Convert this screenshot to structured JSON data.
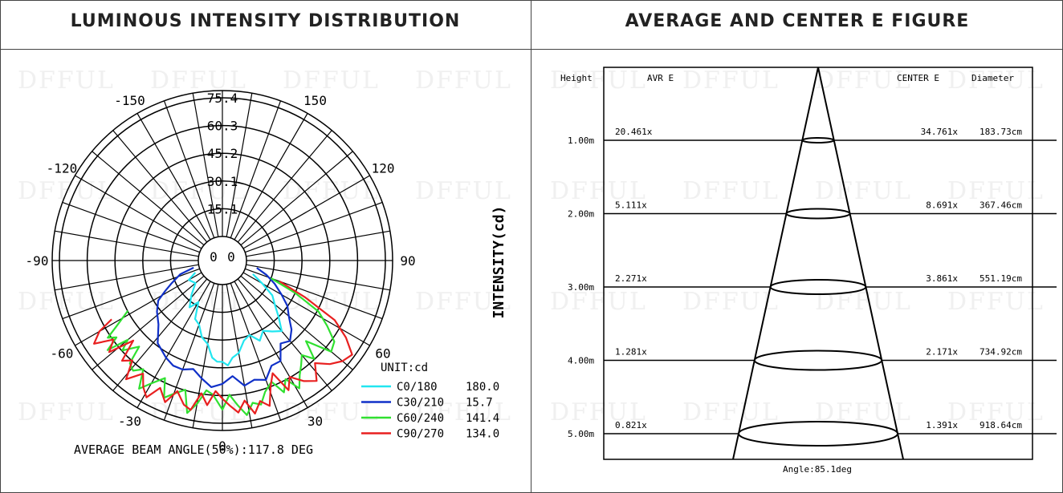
{
  "left_title": "LUMINOUS INTENSITY DISTRIBUTION",
  "right_title": "AVERAGE AND CENTER E FIGURE",
  "watermark": "DFFUL",
  "chart_data": [
    {
      "type": "polar",
      "title": "LUMINOUS INTENSITY DISTRIBUTION",
      "radial_axis_label": "INTENSITY(cd)",
      "radial_ticks": [
        "75.4",
        "60.3",
        "45.2",
        "30.1",
        "15.1"
      ],
      "radial_max": 75.4,
      "radial_step": 15.08,
      "angle_labels": [
        "0",
        "30",
        "60",
        "90",
        "120",
        "150",
        "-150",
        "-120",
        "-90",
        "-60",
        "-30"
      ],
      "center_labels": [
        "0",
        "0"
      ],
      "unit_label": "UNIT:cd",
      "beam_angle_text": "AVERAGE BEAM ANGLE(50%):117.8 DEG",
      "grid": true,
      "legend_position": "bottom-right",
      "series": [
        {
          "name": "C0/180",
          "value": "180.0",
          "color": "#22e6f0",
          "points": [
            [
              -66,
              3
            ],
            [
              -60,
              8
            ],
            [
              -50,
              6
            ],
            [
              -42,
              12
            ],
            [
              -35,
              18
            ],
            [
              -30,
              13
            ],
            [
              -25,
              22
            ],
            [
              -20,
              24
            ],
            [
              -15,
              30
            ],
            [
              -10,
              33
            ],
            [
              -6,
              40
            ],
            [
              -3,
              42
            ],
            [
              0,
              42
            ],
            [
              3,
              44
            ],
            [
              6,
              40
            ],
            [
              10,
              38
            ],
            [
              15,
              32
            ],
            [
              20,
              30
            ],
            [
              25,
              35
            ],
            [
              30,
              31
            ],
            [
              35,
              34
            ],
            [
              40,
              37
            ],
            [
              45,
              30
            ],
            [
              50,
              24
            ],
            [
              55,
              20
            ],
            [
              60,
              12
            ],
            [
              66,
              5
            ]
          ]
        },
        {
          "name": "C30/210",
          "value": "15.7",
          "color": "#1030c8",
          "points": [
            [
              -76,
              3
            ],
            [
              -72,
              11
            ],
            [
              -66,
              17
            ],
            [
              -62,
              22
            ],
            [
              -58,
              28
            ],
            [
              -52,
              32
            ],
            [
              -45,
              36
            ],
            [
              -38,
              44
            ],
            [
              -30,
              48
            ],
            [
              -25,
              50
            ],
            [
              -20,
              50
            ],
            [
              -15,
              48
            ],
            [
              -10,
              52
            ],
            [
              -5,
              56
            ],
            [
              0,
              54
            ],
            [
              5,
              50
            ],
            [
              10,
              56
            ],
            [
              15,
              54
            ],
            [
              20,
              56
            ],
            [
              25,
              50
            ],
            [
              30,
              50
            ],
            [
              35,
              42
            ],
            [
              40,
              44
            ],
            [
              45,
              40
            ],
            [
              50,
              34
            ],
            [
              55,
              30
            ],
            [
              60,
              24
            ],
            [
              66,
              18
            ],
            [
              72,
              12
            ],
            [
              78,
              6
            ]
          ]
        },
        {
          "name": "C60/240",
          "value": "141.4",
          "color": "#30e030",
          "points": [
            [
              -62,
              45
            ],
            [
              -58,
              55
            ],
            [
              -56,
              62
            ],
            [
              -54,
              58
            ],
            [
              -52,
              66
            ],
            [
              -50,
              54
            ],
            [
              -48,
              60
            ],
            [
              -44,
              52
            ],
            [
              -42,
              62
            ],
            [
              -39,
              64
            ],
            [
              -36,
              60
            ],
            [
              -33,
              70
            ],
            [
              -30,
              64
            ],
            [
              -26,
              58
            ],
            [
              -23,
              68
            ],
            [
              -20,
              64
            ],
            [
              -16,
              60
            ],
            [
              -13,
              72
            ],
            [
              -10,
              66
            ],
            [
              -7,
              58
            ],
            [
              -4,
              60
            ],
            [
              0,
              68
            ],
            [
              3,
              60
            ],
            [
              6,
              66
            ],
            [
              9,
              72
            ],
            [
              12,
              66
            ],
            [
              15,
              68
            ],
            [
              18,
              62
            ],
            [
              22,
              58
            ],
            [
              25,
              66
            ],
            [
              28,
              60
            ],
            [
              31,
              68
            ],
            [
              34,
              62
            ],
            [
              37,
              58
            ],
            [
              40,
              54
            ],
            [
              43,
              60
            ],
            [
              46,
              50
            ],
            [
              50,
              64
            ],
            [
              54,
              62
            ],
            [
              58,
              54
            ],
            [
              62,
              46
            ],
            [
              66,
              30
            ],
            [
              70,
              15
            ]
          ]
        },
        {
          "name": "C90/270",
          "value": "134.0",
          "color": "#e82020",
          "points": [
            [
              -62,
              55
            ],
            [
              -60,
              64
            ],
            [
              -57,
              70
            ],
            [
              -54,
              60
            ],
            [
              -51,
              66
            ],
            [
              -48,
              52
            ],
            [
              -45,
              64
            ],
            [
              -42,
              60
            ],
            [
              -39,
              70
            ],
            [
              -35,
              62
            ],
            [
              -32,
              68
            ],
            [
              -29,
              72
            ],
            [
              -26,
              64
            ],
            [
              -22,
              70
            ],
            [
              -19,
              62
            ],
            [
              -15,
              68
            ],
            [
              -12,
              70
            ],
            [
              -9,
              60
            ],
            [
              -6,
              66
            ],
            [
              -3,
              58
            ],
            [
              0,
              62
            ],
            [
              3,
              66
            ],
            [
              6,
              70
            ],
            [
              9,
              64
            ],
            [
              12,
              72
            ],
            [
              15,
              66
            ],
            [
              18,
              70
            ],
            [
              21,
              60
            ],
            [
              24,
              54
            ],
            [
              27,
              66
            ],
            [
              30,
              60
            ],
            [
              34,
              66
            ],
            [
              38,
              70
            ],
            [
              42,
              62
            ],
            [
              46,
              68
            ],
            [
              50,
              72
            ],
            [
              54,
              74
            ],
            [
              58,
              66
            ],
            [
              62,
              56
            ],
            [
              66,
              36
            ],
            [
              70,
              20
            ]
          ]
        }
      ]
    },
    {
      "type": "table",
      "title": "AVERAGE AND CENTER E FIGURE",
      "columns": [
        "Height",
        "AVR E",
        "CENTER E",
        "Diameter"
      ],
      "rows": [
        {
          "height": "1.00m",
          "avr": "20.461x",
          "center": "34.761x",
          "diameter": "183.73cm"
        },
        {
          "height": "2.00m",
          "avr": "5.111x",
          "center": "8.691x",
          "diameter": "367.46cm"
        },
        {
          "height": "3.00m",
          "avr": "2.271x",
          "center": "3.861x",
          "diameter": "551.19cm"
        },
        {
          "height": "4.00m",
          "avr": "1.281x",
          "center": "2.171x",
          "diameter": "734.92cm"
        },
        {
          "height": "5.00m",
          "avr": "0.821x",
          "center": "1.391x",
          "diameter": "918.64cm"
        }
      ],
      "angle_text": "Angle:85.1deg"
    }
  ]
}
